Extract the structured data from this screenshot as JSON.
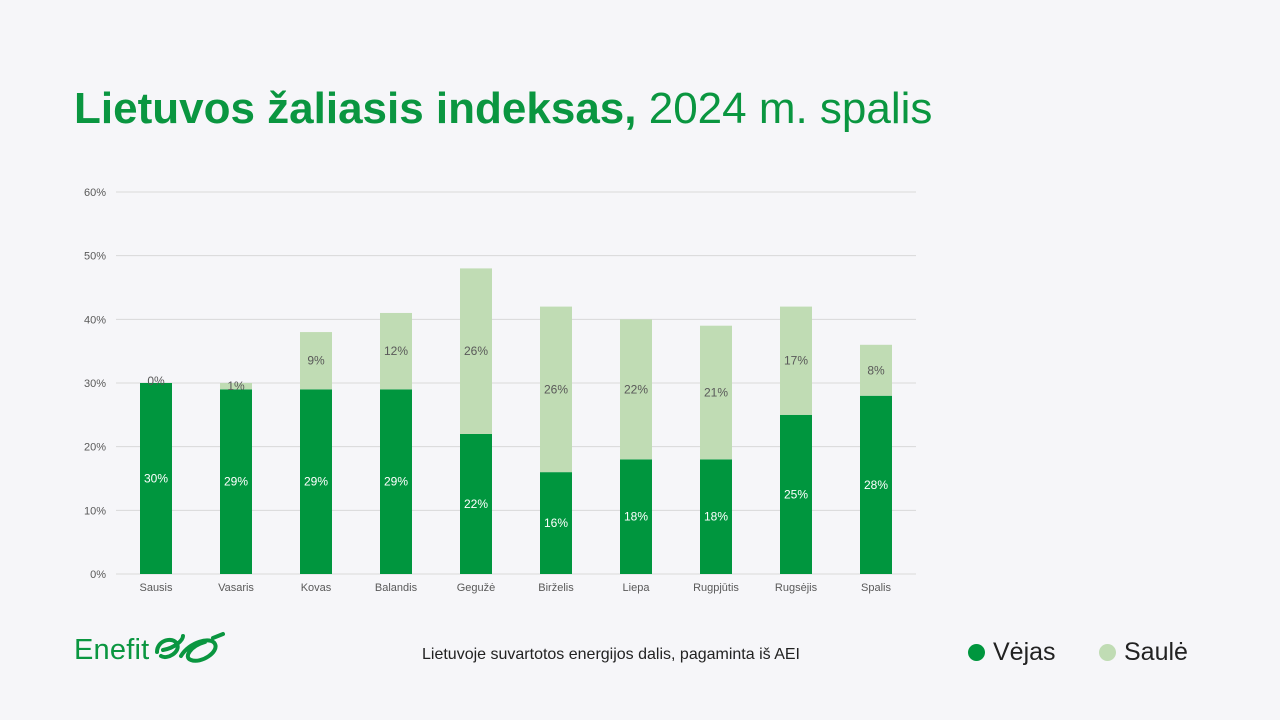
{
  "title": {
    "bold": "Lietuvos žaliasis indeksas,",
    "light": "2024 m. spalis"
  },
  "logo": {
    "text": "Enefit"
  },
  "footnote": "Lietuvoje suvartotos energijos dalis, pagaminta iš AEI",
  "legend": [
    {
      "label": "Vėjas",
      "color": "#00963e"
    },
    {
      "label": "Saulė",
      "color": "#c0dcb4"
    }
  ],
  "colors": {
    "wind": "#00963e",
    "solar": "#c0dcb4",
    "grid": "#d9d9d9",
    "axis_text": "#595959",
    "title": "#0a9640"
  },
  "chart_data": {
    "type": "bar",
    "stacked": true,
    "categories": [
      "Sausis",
      "Vasaris",
      "Kovas",
      "Balandis",
      "Gegužė",
      "Birželis",
      "Liepa",
      "Rugpjūtis",
      "Rugsėjis",
      "Spalis"
    ],
    "series": [
      {
        "name": "Vėjas",
        "values": [
          30,
          29,
          29,
          29,
          22,
          16,
          18,
          18,
          25,
          28
        ],
        "labels": [
          "30%",
          "29%",
          "29%",
          "29%",
          "22%",
          "16%",
          "18%",
          "18%",
          "25%",
          "28%"
        ]
      },
      {
        "name": "Saulė",
        "values": [
          0,
          1,
          9,
          12,
          26,
          26,
          22,
          21,
          17,
          8
        ],
        "labels": [
          "0%",
          "1%",
          "9%",
          "12%",
          "26%",
          "26%",
          "22%",
          "21%",
          "17%",
          "8%"
        ]
      }
    ],
    "ylim": [
      0,
      60
    ],
    "yticks": [
      "0%",
      "10%",
      "20%",
      "30%",
      "40%",
      "50%",
      "60%"
    ],
    "grid": true,
    "legend": "bottom-right",
    "xlabel": "",
    "ylabel": ""
  }
}
